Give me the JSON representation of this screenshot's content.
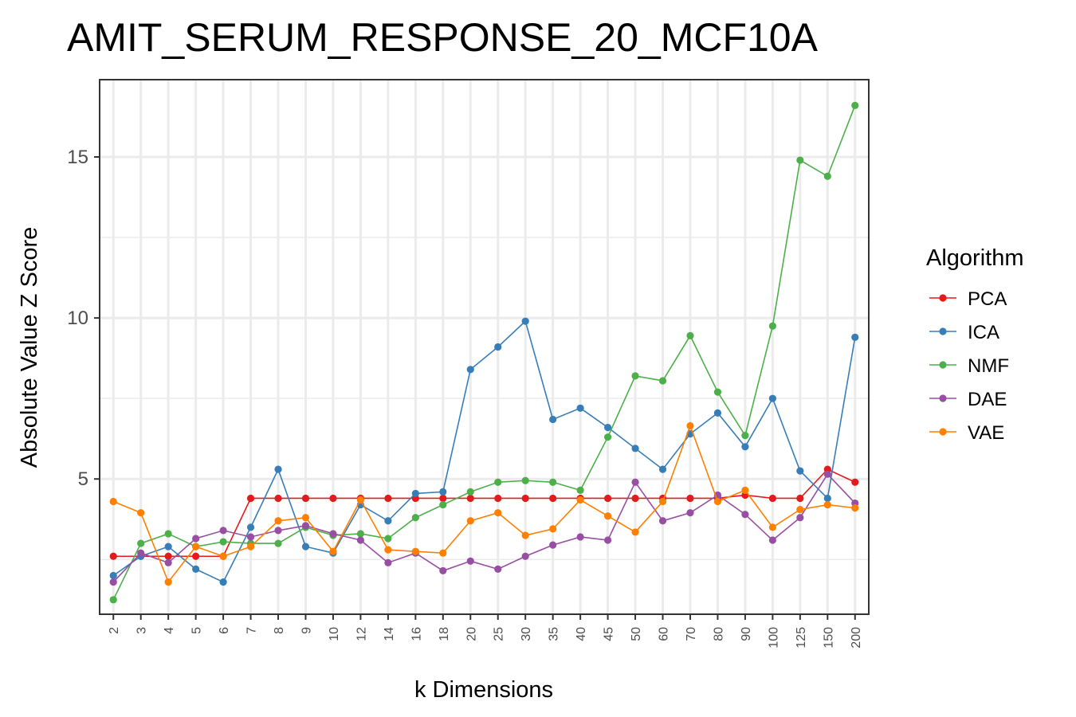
{
  "chart_data": {
    "type": "line",
    "title": "AMIT_SERUM_RESPONSE_20_MCF10A",
    "xlabel": "k Dimensions",
    "ylabel": "Absolute Value Z Score",
    "categories": [
      "2",
      "3",
      "4",
      "5",
      "6",
      "7",
      "8",
      "9",
      "10",
      "12",
      "14",
      "16",
      "18",
      "20",
      "25",
      "30",
      "35",
      "40",
      "45",
      "50",
      "60",
      "70",
      "80",
      "90",
      "100",
      "125",
      "150",
      "200"
    ],
    "ylim": [
      0.8,
      17.4
    ],
    "yticks": [
      5,
      10,
      15
    ],
    "yticks_minor": [
      2.5,
      7.5,
      12.5
    ],
    "grid": true,
    "legend": {
      "title": "Algorithm",
      "position": "right"
    },
    "series": [
      {
        "name": "PCA",
        "color": "#E41A1C",
        "values": [
          2.6,
          2.6,
          2.6,
          2.6,
          2.6,
          4.4,
          4.4,
          4.4,
          4.4,
          4.4,
          4.4,
          4.4,
          4.4,
          4.4,
          4.4,
          4.4,
          4.4,
          4.4,
          4.4,
          4.4,
          4.4,
          4.4,
          4.4,
          4.5,
          4.4,
          4.4,
          5.3,
          4.9
        ]
      },
      {
        "name": "ICA",
        "color": "#377EB8",
        "values": [
          2.0,
          2.6,
          2.9,
          2.2,
          1.8,
          3.5,
          5.3,
          2.9,
          2.7,
          4.2,
          3.7,
          4.55,
          4.6,
          8.4,
          9.1,
          9.9,
          6.85,
          7.2,
          6.6,
          5.95,
          5.3,
          6.4,
          7.05,
          6.0,
          7.5,
          5.25,
          4.4,
          9.4
        ]
      },
      {
        "name": "NMF",
        "color": "#4DAF4A",
        "values": [
          1.25,
          3.0,
          3.3,
          2.9,
          3.05,
          3.0,
          3.0,
          3.5,
          3.25,
          3.3,
          3.15,
          3.8,
          4.2,
          4.6,
          4.9,
          4.95,
          4.9,
          4.65,
          6.3,
          8.2,
          8.05,
          9.45,
          7.7,
          6.35,
          9.75,
          14.9,
          14.4,
          16.6
        ]
      },
      {
        "name": "DAE",
        "color": "#984EA3",
        "values": [
          1.8,
          2.7,
          2.4,
          3.15,
          3.4,
          3.2,
          3.4,
          3.55,
          3.3,
          3.1,
          2.4,
          2.7,
          2.15,
          2.45,
          2.2,
          2.6,
          2.95,
          3.2,
          3.1,
          4.9,
          3.7,
          3.95,
          4.5,
          3.9,
          3.1,
          3.8,
          5.15,
          4.25
        ]
      },
      {
        "name": "VAE",
        "color": "#FF7F00",
        "values": [
          4.3,
          3.95,
          1.8,
          2.9,
          2.6,
          2.9,
          3.7,
          3.8,
          2.75,
          4.35,
          2.8,
          2.75,
          2.7,
          3.7,
          3.95,
          3.25,
          3.45,
          4.35,
          3.85,
          3.35,
          4.3,
          6.65,
          4.3,
          4.65,
          3.5,
          4.05,
          4.2,
          4.1
        ]
      }
    ]
  }
}
